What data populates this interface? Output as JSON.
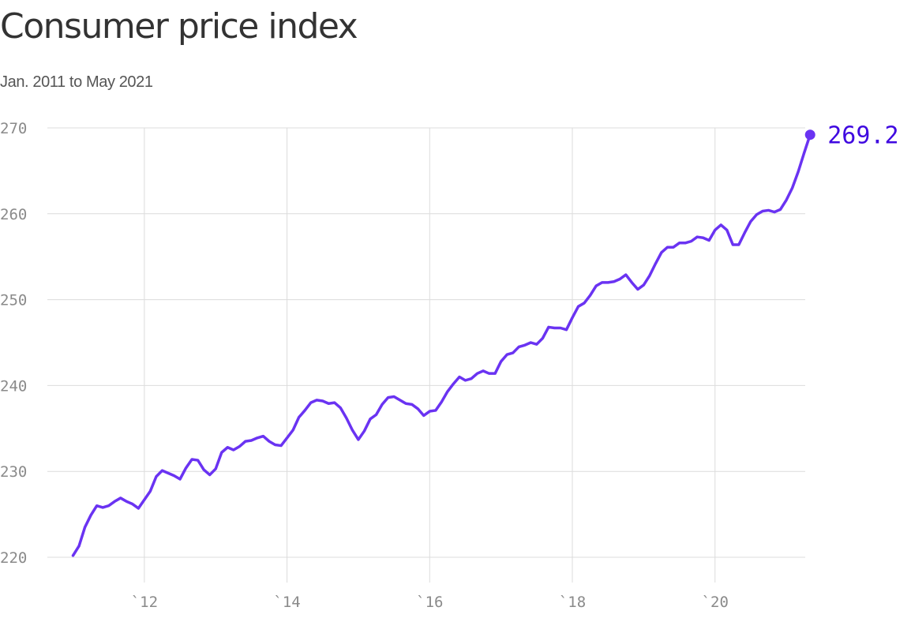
{
  "title": "Consumer price index",
  "subtitle": "Jan. 2011 to May 2021",
  "colors": {
    "line": "#6a33f2",
    "end_label": "#3f08e0",
    "grid": "#dcdcdc",
    "tick_text": "#8a8a8a",
    "title": "#333333"
  },
  "chart_data": {
    "type": "line",
    "title": "Consumer price index",
    "subtitle": "Jan. 2011 to May 2021",
    "xlabel": "",
    "ylabel": "",
    "grid": true,
    "legend": "none",
    "x_start": "2011-01",
    "x_end": "2021-05",
    "x_unit": "month",
    "xlim": [
      "2011-01",
      "2021-05"
    ],
    "ylim": [
      220,
      270
    ],
    "yticks": [
      220,
      230,
      240,
      250,
      260,
      270
    ],
    "ytick_labels": [
      "220",
      "230",
      "240",
      "250",
      "260",
      "270"
    ],
    "xticks": [
      "2012-01",
      "2014-01",
      "2016-01",
      "2018-01",
      "2020-01"
    ],
    "xtick_labels": [
      "`12",
      "`14",
      "`16",
      "`18",
      "`20"
    ],
    "end_value_label": "269.2",
    "series": [
      {
        "values": [
          220.2,
          221.3,
          223.5,
          224.9,
          226.0,
          225.8,
          226.0,
          226.5,
          226.9,
          226.5,
          226.2,
          225.7,
          226.7,
          227.7,
          229.4,
          230.1,
          229.8,
          229.5,
          229.1,
          230.4,
          231.4,
          231.3,
          230.2,
          229.6,
          230.3,
          232.2,
          232.8,
          232.5,
          232.9,
          233.5,
          233.6,
          233.9,
          234.1,
          233.5,
          233.1,
          233.0,
          233.9,
          234.8,
          236.3,
          237.1,
          238.0,
          238.3,
          238.2,
          237.9,
          238.0,
          237.4,
          236.2,
          234.8,
          233.7,
          234.7,
          236.1,
          236.6,
          237.8,
          238.6,
          238.7,
          238.3,
          237.9,
          237.8,
          237.3,
          236.5,
          237.0,
          237.1,
          238.1,
          239.3,
          240.2,
          241.0,
          240.6,
          240.8,
          241.4,
          241.7,
          241.4,
          241.4,
          242.8,
          243.6,
          243.8,
          244.5,
          244.7,
          245.0,
          244.8,
          245.5,
          246.8,
          246.7,
          246.7,
          246.5,
          247.9,
          249.2,
          249.6,
          250.5,
          251.6,
          252.0,
          252.0,
          252.1,
          252.4,
          252.9,
          252.0,
          251.2,
          251.7,
          252.8,
          254.2,
          255.5,
          256.1,
          256.1,
          256.6,
          256.6,
          256.8,
          257.3,
          257.2,
          256.9,
          258.1,
          258.7,
          258.1,
          256.4,
          256.4,
          257.8,
          259.1,
          259.9,
          260.3,
          260.4,
          260.2,
          260.5,
          261.6,
          263.0,
          264.9,
          267.1,
          269.2
        ]
      }
    ]
  }
}
